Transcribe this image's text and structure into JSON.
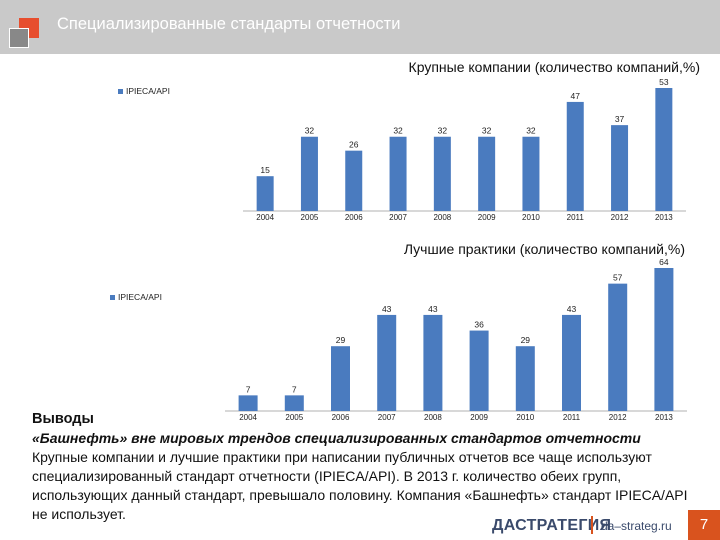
{
  "slide": {
    "title": "Специализированные стандарты отчетности",
    "page_number": "7",
    "colors": {
      "title_bar": "#c9c9c9",
      "accent_red": "#e74e2e",
      "accent_gray": "#888888",
      "bar": "#4a7bbf",
      "footer_accent": "#d9531e"
    }
  },
  "chart_data": [
    {
      "type": "bar",
      "title": "Крупные компании (количество компаний,%)",
      "legend": [
        "IPIECA/API"
      ],
      "legend_position": "top-left",
      "categories": [
        "2004",
        "2005",
        "2006",
        "2007",
        "2008",
        "2009",
        "2010",
        "2011",
        "2012",
        "2013"
      ],
      "series": [
        {
          "name": "IPIECA/API",
          "values": [
            15,
            32,
            26,
            32,
            32,
            32,
            32,
            47,
            37,
            53
          ]
        }
      ],
      "ylim": [
        0,
        53
      ],
      "grid": false
    },
    {
      "type": "bar",
      "title": "Лучшие практики (количество компаний,%)",
      "legend": [
        "IPIECA/API"
      ],
      "legend_position": "top-left",
      "categories": [
        "2004",
        "2005",
        "2006",
        "2007",
        "2008",
        "2009",
        "2010",
        "2011",
        "2012",
        "2013"
      ],
      "series": [
        {
          "name": "IPIECA/API",
          "values": [
            7,
            7,
            29,
            43,
            43,
            36,
            29,
            43,
            57,
            64
          ]
        }
      ],
      "ylim": [
        0,
        64
      ],
      "grid": false
    }
  ],
  "conclusions": {
    "heading": "Выводы",
    "subtitle": "«Башнефть» вне мировых трендов специализированных стандартов отчетности",
    "body": "Крупные компании и лучшие практики при написании публичных отчетов все чаще используют специализированный стандарт отчетности (IPIECA/API). В 2013 г. количество обеих групп, использующих данный стандарт, превышало половину. Компания «Башнефть» стандарт IPIECA/API не использует."
  },
  "footer": {
    "logo": "ДАСТРАТЕГИЯ",
    "url": "da–strateg.ru"
  }
}
